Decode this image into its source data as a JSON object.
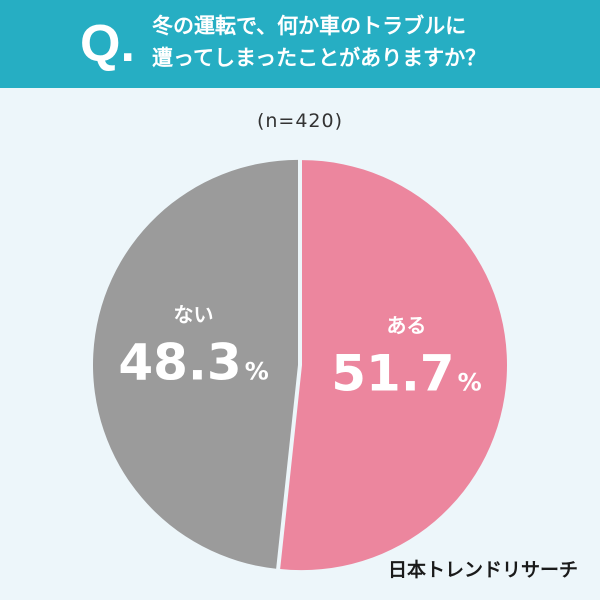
{
  "header": {
    "q_mark": "Q.",
    "question": "冬の運転で、何か車のトラブルに\n遭ってしまったことがありますか？"
  },
  "sample_size": "(n=420)",
  "source": "日本トレンドリサーチ",
  "colors": {
    "header_bg": "#26aec3",
    "page_bg": "#edf6fa",
    "yes": "#ec869e",
    "no": "#9b9b9b",
    "label_text": "#ffffff"
  },
  "chart_data": {
    "type": "pie",
    "slices": [
      {
        "label": "ある",
        "value": 51.7,
        "display": "51.7",
        "unit": "%",
        "color": "#ec869e"
      },
      {
        "label": "ない",
        "value": 48.3,
        "display": "48.3",
        "unit": "%",
        "color": "#9b9b9b"
      }
    ],
    "start": "top",
    "direction": "clockwise"
  }
}
